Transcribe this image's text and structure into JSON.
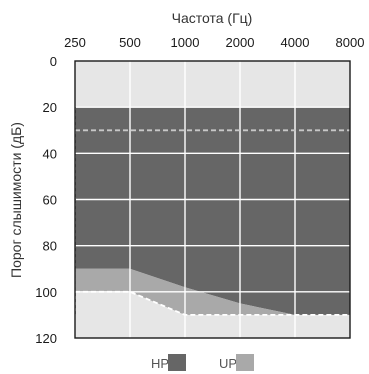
{
  "chart_data": {
    "type": "area",
    "xlabel": "Частота (Гц)",
    "ylabel": "Порог слышимости (дБ)",
    "x_ticks": [
      "250",
      "500",
      "1000",
      "2000",
      "4000",
      "8000"
    ],
    "y_ticks": [
      "0",
      "20",
      "40",
      "60",
      "80",
      "100",
      "120"
    ],
    "ylim": [
      0,
      120
    ],
    "y_inverted": true,
    "x_scale": "log",
    "grid": true,
    "background_band": {
      "from": 0,
      "to": 120,
      "color": "#e6e6e6"
    },
    "series": [
      {
        "name": "HP",
        "color": "#666666",
        "upper": {
          "x": [
            250,
            8000
          ],
          "y": [
            20,
            20
          ]
        },
        "lower": {
          "x": [
            250,
            500,
            1000,
            2000,
            4000,
            8000
          ],
          "y": [
            90,
            90,
            98,
            105,
            110,
            110
          ]
        }
      },
      {
        "name": "UP",
        "color": "#a9a9a9",
        "upper": {
          "x": [
            250,
            500,
            1000,
            2000,
            4000,
            8000
          ],
          "y": [
            90,
            90,
            98,
            105,
            110,
            110
          ]
        },
        "lower": {
          "x": [
            250,
            500,
            1000,
            2000,
            4000,
            8000
          ],
          "y": [
            100,
            100,
            110,
            110,
            110,
            110
          ]
        }
      }
    ],
    "reference_lines": [
      {
        "style": "dashed",
        "color": "#c8c8c8",
        "x": [
          250,
          8000
        ],
        "y": [
          30,
          30
        ]
      },
      {
        "style": "dashed",
        "color": "#ffffff",
        "x": [
          250,
          500,
          1000,
          2000,
          4000,
          8000
        ],
        "y": [
          100,
          100,
          110,
          110,
          110,
          110
        ]
      }
    ],
    "legend": {
      "position": "bottom",
      "items": [
        "HP",
        "UP"
      ]
    }
  }
}
